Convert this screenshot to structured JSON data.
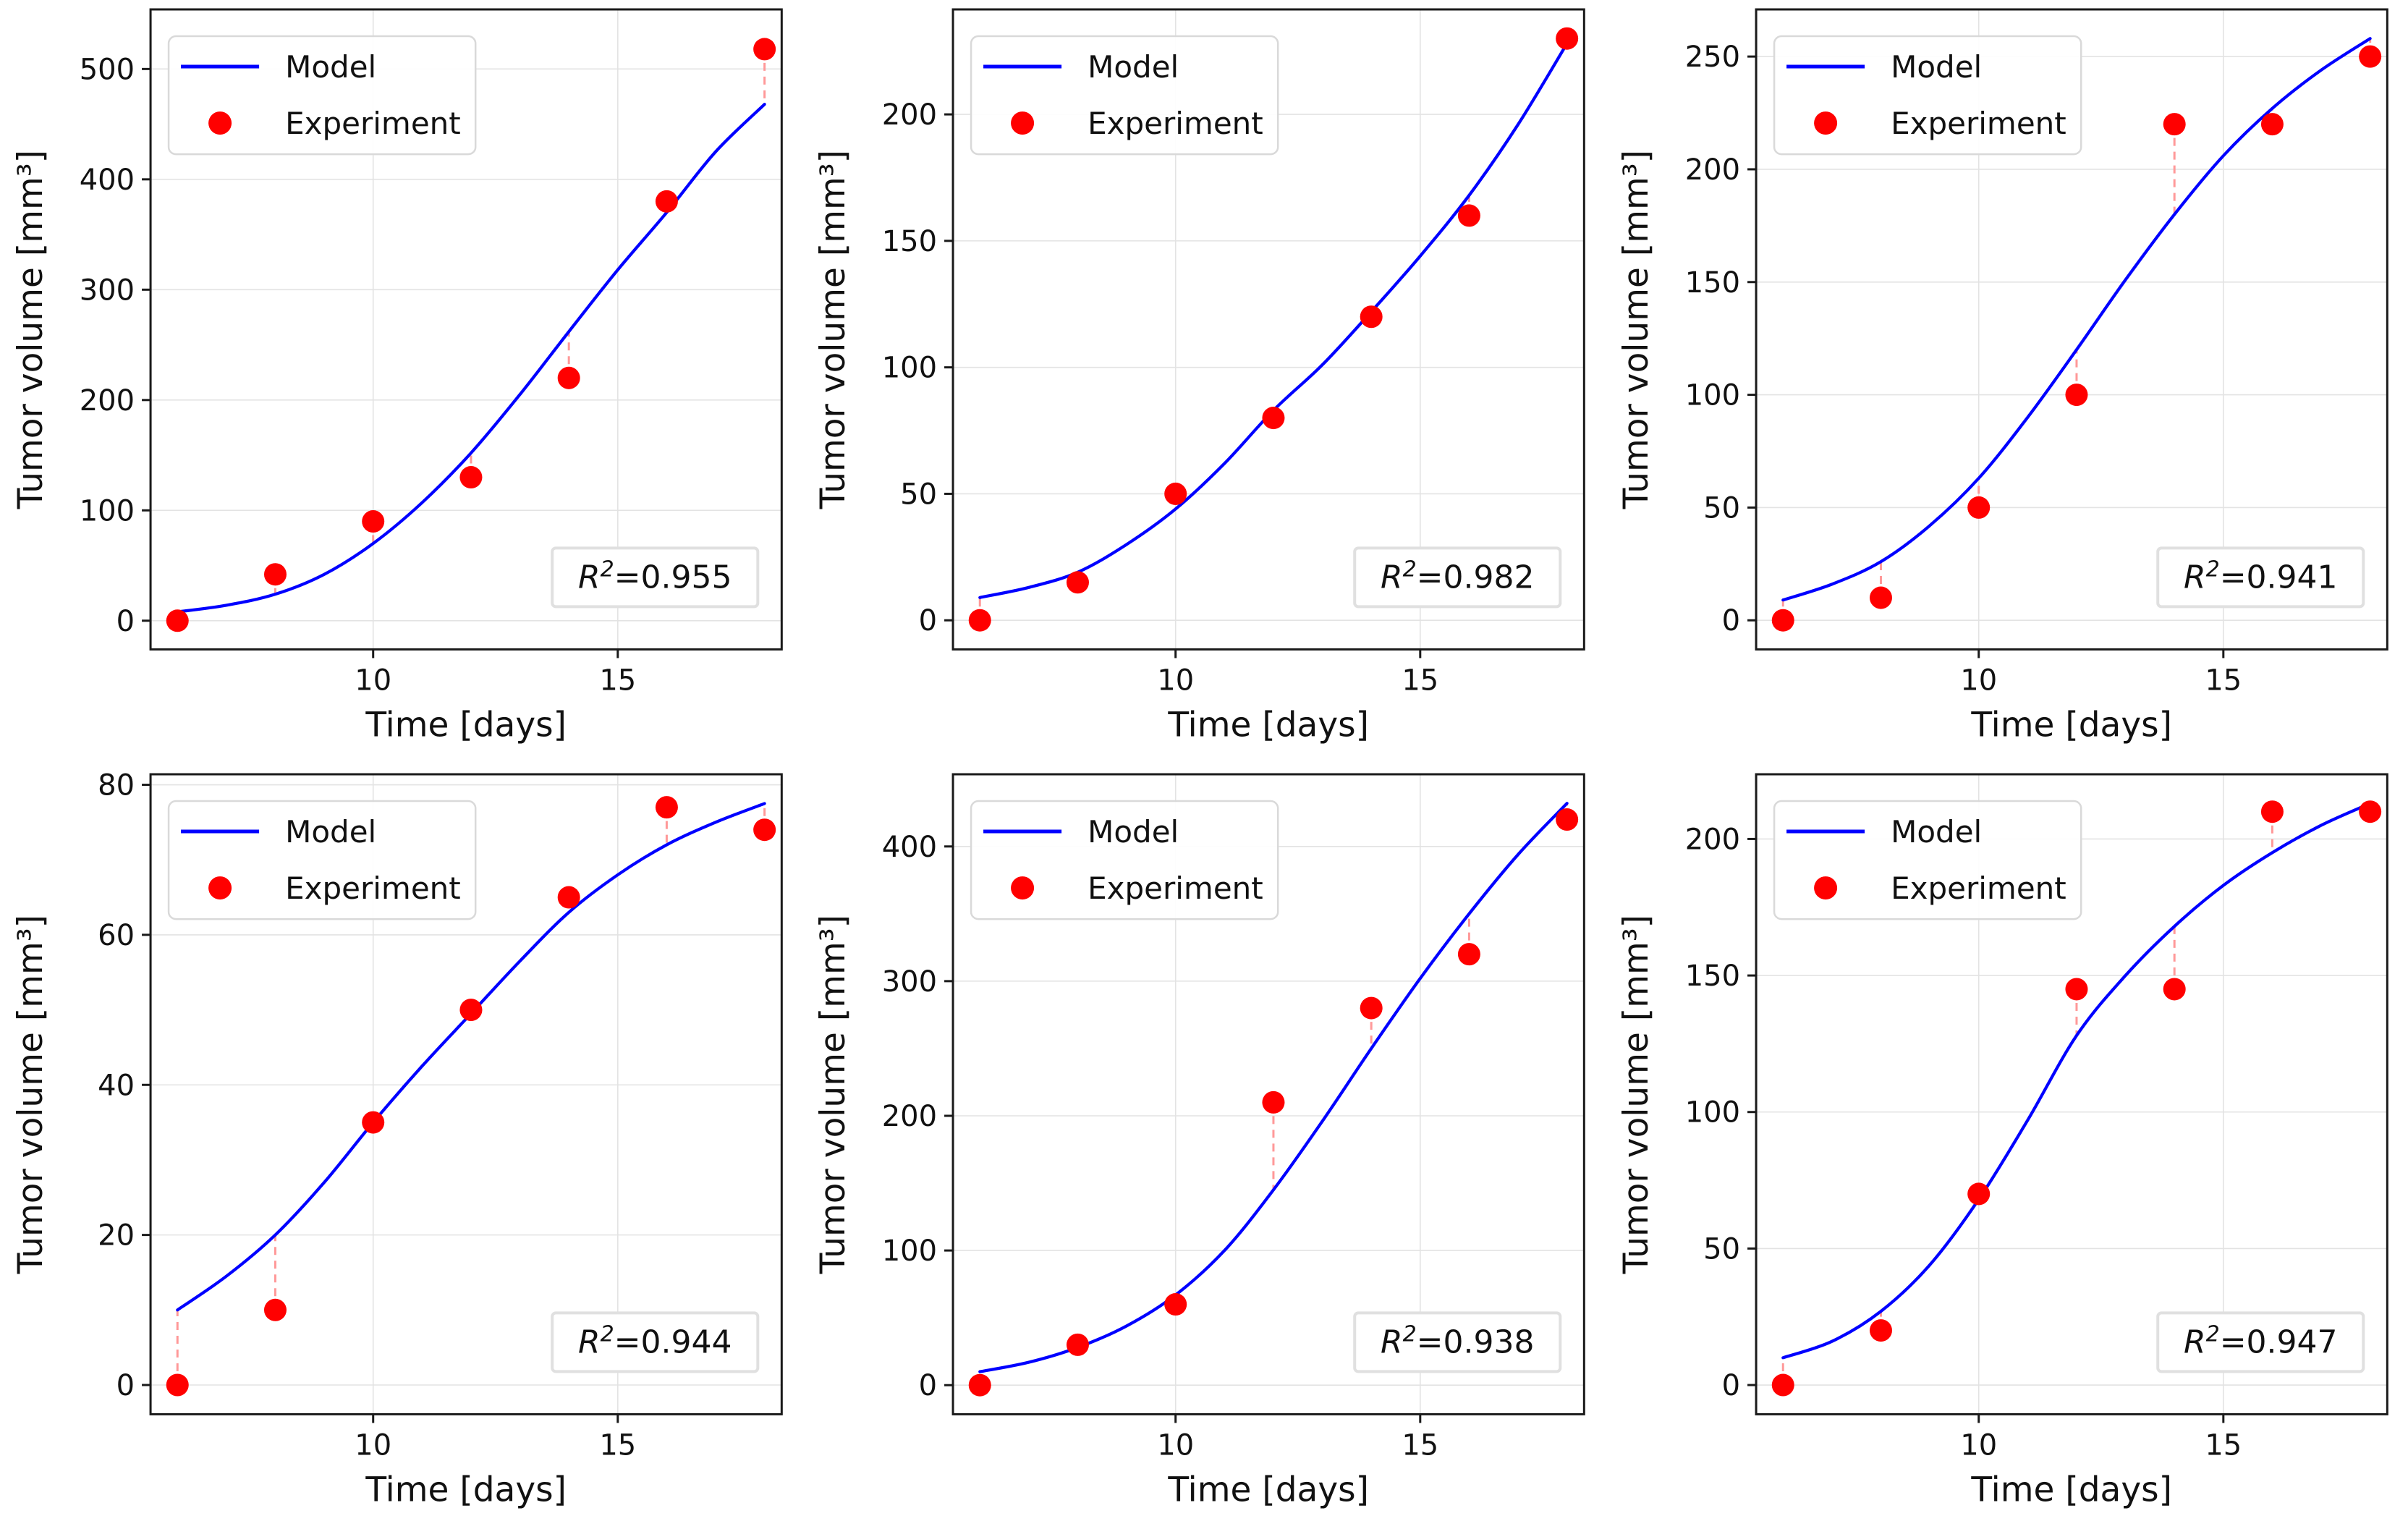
{
  "figure": {
    "background": "#ffffff",
    "rows": 2,
    "cols": 3
  },
  "style": {
    "model_color": "#0000FF",
    "experiment_color": "#FF0000",
    "residual_color": "#FF9999",
    "grid_color": "#E3E3E3",
    "spine_color": "#1a1a1a",
    "text_color": "#111111",
    "legend_border_color": "#D9D9D9",
    "annotation_border_color": "#E0E0E0"
  },
  "r2_format": {
    "symbol": "R",
    "exponent": "2",
    "equals": "="
  },
  "chart_data": [
    {
      "type": "scatter",
      "title": "",
      "xlabel": "Time [days]",
      "ylabel": "Tumor volume [mm³]",
      "xlim": [
        5.45,
        18.35
      ],
      "ylim": [
        -26,
        554
      ],
      "x_ticks": [
        10,
        15
      ],
      "y_ticks": [
        0,
        100,
        200,
        300,
        400,
        500
      ],
      "grid": true,
      "legend_position": "upper-left",
      "r2": "0.955",
      "series": [
        {
          "name": "Model",
          "type": "line",
          "x": [
            6,
            7,
            8,
            9,
            10,
            11,
            12,
            13,
            14,
            15,
            16,
            17,
            18
          ],
          "y": [
            8,
            14,
            24,
            42,
            70,
            107,
            152,
            205,
            262,
            318,
            370,
            425,
            468
          ]
        },
        {
          "name": "Experiment",
          "type": "scatter",
          "x": [
            6,
            8,
            10,
            12,
            14,
            16,
            18
          ],
          "y": [
            0,
            42,
            90,
            130,
            220,
            380,
            518
          ]
        }
      ]
    },
    {
      "type": "scatter",
      "title": "",
      "xlabel": "Time [days]",
      "ylabel": "Tumor volume [mm³]",
      "xlim": [
        5.45,
        18.35
      ],
      "ylim": [
        -11.5,
        241.5
      ],
      "x_ticks": [
        10,
        15
      ],
      "y_ticks": [
        0,
        50,
        100,
        150,
        200
      ],
      "grid": true,
      "legend_position": "upper-left",
      "r2": "0.982",
      "series": [
        {
          "name": "Model",
          "type": "line",
          "x": [
            6,
            7,
            8,
            9,
            10,
            11,
            12,
            13,
            14,
            15,
            16,
            17,
            18
          ],
          "y": [
            9,
            13,
            19,
            30,
            44,
            62,
            83,
            101,
            122,
            144,
            168,
            196,
            228
          ]
        },
        {
          "name": "Experiment",
          "type": "scatter",
          "x": [
            6,
            8,
            10,
            12,
            14,
            16,
            18
          ],
          "y": [
            0,
            15,
            50,
            80,
            120,
            160,
            230
          ]
        }
      ]
    },
    {
      "type": "scatter",
      "title": "",
      "xlabel": "Time [days]",
      "ylabel": "Tumor volume [mm³]",
      "xlim": [
        5.45,
        18.35
      ],
      "ylim": [
        -12.9,
        270.9
      ],
      "x_ticks": [
        10,
        15
      ],
      "y_ticks": [
        0,
        50,
        100,
        150,
        200,
        250
      ],
      "grid": true,
      "legend_position": "upper-left",
      "r2": "0.941",
      "series": [
        {
          "name": "Model",
          "type": "line",
          "x": [
            6,
            7,
            8,
            9,
            10,
            11,
            12,
            13,
            14,
            15,
            16,
            17,
            18
          ],
          "y": [
            9,
            16,
            26,
            42,
            63,
            90,
            120,
            151,
            180,
            206,
            227,
            244,
            258
          ]
        },
        {
          "name": "Experiment",
          "type": "scatter",
          "x": [
            6,
            8,
            10,
            12,
            14,
            16,
            18
          ],
          "y": [
            0,
            10,
            50,
            100,
            220,
            220,
            250
          ]
        }
      ]
    },
    {
      "type": "scatter",
      "title": "",
      "xlabel": "Time [days]",
      "ylabel": "Tumor volume [mm³]",
      "xlim": [
        5.45,
        18.35
      ],
      "ylim": [
        -3.9,
        81.4
      ],
      "x_ticks": [
        10,
        15
      ],
      "y_ticks": [
        0,
        20,
        40,
        60,
        80
      ],
      "grid": true,
      "legend_position": "upper-left",
      "r2": "0.944",
      "series": [
        {
          "name": "Model",
          "type": "line",
          "x": [
            6,
            7,
            8,
            9,
            10,
            11,
            12,
            13,
            14,
            15,
            16,
            17,
            18
          ],
          "y": [
            10,
            14.5,
            20,
            27,
            35,
            42.5,
            49.5,
            56.5,
            63,
            68,
            72,
            75,
            77.5
          ]
        },
        {
          "name": "Experiment",
          "type": "scatter",
          "x": [
            6,
            8,
            10,
            12,
            14,
            16,
            18
          ],
          "y": [
            0,
            10,
            35,
            50,
            65,
            77,
            74
          ]
        }
      ]
    },
    {
      "type": "scatter",
      "title": "",
      "xlabel": "Time [days]",
      "ylabel": "Tumor volume [mm³]",
      "xlim": [
        5.45,
        18.35
      ],
      "ylim": [
        -21.6,
        453.6
      ],
      "x_ticks": [
        10,
        15
      ],
      "y_ticks": [
        0,
        100,
        200,
        300,
        400
      ],
      "grid": true,
      "legend_position": "upper-left",
      "r2": "0.938",
      "series": [
        {
          "name": "Model",
          "type": "line",
          "x": [
            6,
            7,
            8,
            9,
            10,
            11,
            12,
            13,
            14,
            15,
            16,
            17,
            18
          ],
          "y": [
            10,
            17,
            28,
            44,
            67,
            100,
            145,
            196,
            250,
            302,
            350,
            394,
            432
          ]
        },
        {
          "name": "Experiment",
          "type": "scatter",
          "x": [
            6,
            8,
            10,
            12,
            14,
            16,
            18
          ],
          "y": [
            0,
            30,
            60,
            210,
            280,
            320,
            420
          ]
        }
      ]
    },
    {
      "type": "scatter",
      "title": "",
      "xlabel": "Time [days]",
      "ylabel": "Tumor volume [mm³]",
      "xlim": [
        5.45,
        18.35
      ],
      "ylim": [
        -10.7,
        223.7
      ],
      "x_ticks": [
        10,
        15
      ],
      "y_ticks": [
        0,
        50,
        100,
        150,
        200
      ],
      "grid": true,
      "legend_position": "upper-left",
      "r2": "0.947",
      "series": [
        {
          "name": "Model",
          "type": "line",
          "x": [
            6,
            7,
            8,
            9,
            10,
            11,
            12,
            13,
            14,
            15,
            16,
            17,
            18
          ],
          "y": [
            10,
            16,
            27,
            44,
            68,
            97,
            128,
            150,
            168,
            183,
            195,
            205,
            213
          ]
        },
        {
          "name": "Experiment",
          "type": "scatter",
          "x": [
            6,
            8,
            10,
            12,
            14,
            16,
            18
          ],
          "y": [
            0,
            20,
            70,
            145,
            145,
            210,
            210
          ]
        }
      ]
    }
  ]
}
